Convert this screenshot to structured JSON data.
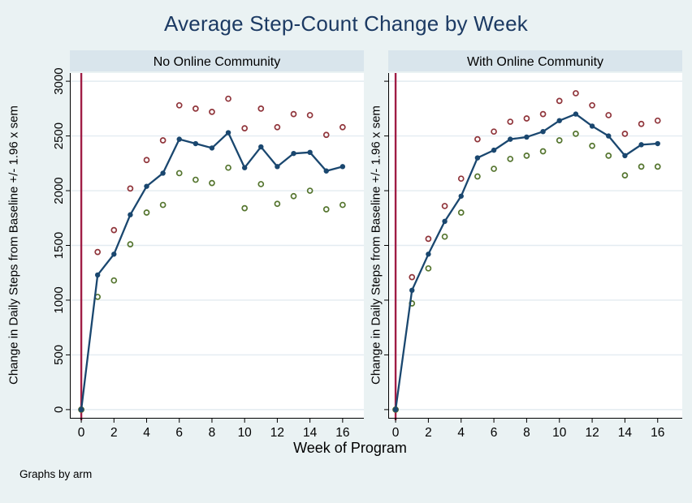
{
  "title": "Average Step-Count Change by Week",
  "xlabel": "Week of Program",
  "ylabel": "Change in Daily Steps from Baseline +/- 1.96 x sem",
  "footer": "Graphs by arm",
  "colors": {
    "background": "#eaf2f3",
    "plot_background": "#ffffff",
    "strip": "#d9e5ec",
    "grid": "#e3ecf1",
    "axis": "#000000",
    "title_text": "#1c3a63",
    "navy": "#1a476f",
    "maroon": "#90353b",
    "olive": "#55752f",
    "xline": "#a01d45"
  },
  "chart_data": [
    {
      "type": "line",
      "panel": "No Online Community",
      "x": [
        0,
        1,
        2,
        3,
        4,
        5,
        6,
        7,
        8,
        9,
        10,
        11,
        12,
        13,
        14,
        15,
        16
      ],
      "series": [
        {
          "name": "mean change",
          "role": "mean",
          "color": "#1a476f",
          "marker": "filled-circle",
          "line": "solid",
          "values": [
            0,
            1230,
            1420,
            1780,
            2040,
            2160,
            2470,
            2430,
            2390,
            2530,
            2210,
            2400,
            2220,
            2340,
            2350,
            2180,
            2220
          ]
        },
        {
          "name": "upper bound (+1.96 sem)",
          "role": "upper",
          "color": "#90353b",
          "marker": "hollow-circle",
          "line": "none",
          "values": [
            0,
            1440,
            1640,
            2020,
            2280,
            2460,
            2780,
            2750,
            2720,
            2840,
            2570,
            2750,
            2580,
            2700,
            2690,
            2510,
            2580
          ]
        },
        {
          "name": "lower bound (-1.96 sem)",
          "role": "lower",
          "color": "#55752f",
          "marker": "hollow-circle",
          "line": "none",
          "values": [
            0,
            1030,
            1180,
            1510,
            1800,
            1870,
            2160,
            2100,
            2070,
            2210,
            1840,
            2060,
            1880,
            1950,
            2000,
            1830,
            1870
          ]
        }
      ],
      "yticks": [
        0,
        500,
        1000,
        1500,
        2000,
        2500,
        3000
      ],
      "xticks": [
        0,
        2,
        4,
        6,
        8,
        10,
        12,
        14,
        16
      ],
      "ylim": [
        -75,
        3075
      ],
      "xlim": [
        -0.7,
        17.3
      ],
      "xline": 0,
      "ytick_labels_visible": true,
      "grid": true,
      "legend": "none"
    },
    {
      "type": "line",
      "panel": "With Online Community",
      "x": [
        0,
        1,
        2,
        3,
        4,
        5,
        6,
        7,
        8,
        9,
        10,
        11,
        12,
        13,
        14,
        15,
        16
      ],
      "series": [
        {
          "name": "mean change",
          "role": "mean",
          "color": "#1a476f",
          "marker": "filled-circle",
          "line": "solid",
          "values": [
            0,
            1090,
            1420,
            1720,
            1950,
            2300,
            2370,
            2470,
            2490,
            2540,
            2640,
            2700,
            2590,
            2500,
            2320,
            2420,
            2430
          ]
        },
        {
          "name": "upper bound (+1.96 sem)",
          "role": "upper",
          "color": "#90353b",
          "marker": "hollow-circle",
          "line": "none",
          "values": [
            0,
            1210,
            1560,
            1860,
            2110,
            2470,
            2540,
            2630,
            2660,
            2700,
            2820,
            2890,
            2780,
            2690,
            2520,
            2610,
            2640
          ]
        },
        {
          "name": "lower bound (-1.96 sem)",
          "role": "lower",
          "color": "#55752f",
          "marker": "hollow-circle",
          "line": "none",
          "values": [
            0,
            970,
            1290,
            1580,
            1800,
            2130,
            2200,
            2290,
            2320,
            2360,
            2460,
            2520,
            2410,
            2320,
            2140,
            2220,
            2220
          ]
        }
      ],
      "yticks": [
        0,
        500,
        1000,
        1500,
        2000,
        2500,
        3000
      ],
      "xticks": [
        0,
        2,
        4,
        6,
        8,
        10,
        12,
        14,
        16
      ],
      "ylim": [
        -75,
        3075
      ],
      "xlim": [
        -0.45,
        17.5
      ],
      "xline": 0,
      "ytick_labels_visible": false,
      "grid": true,
      "legend": "none"
    }
  ]
}
